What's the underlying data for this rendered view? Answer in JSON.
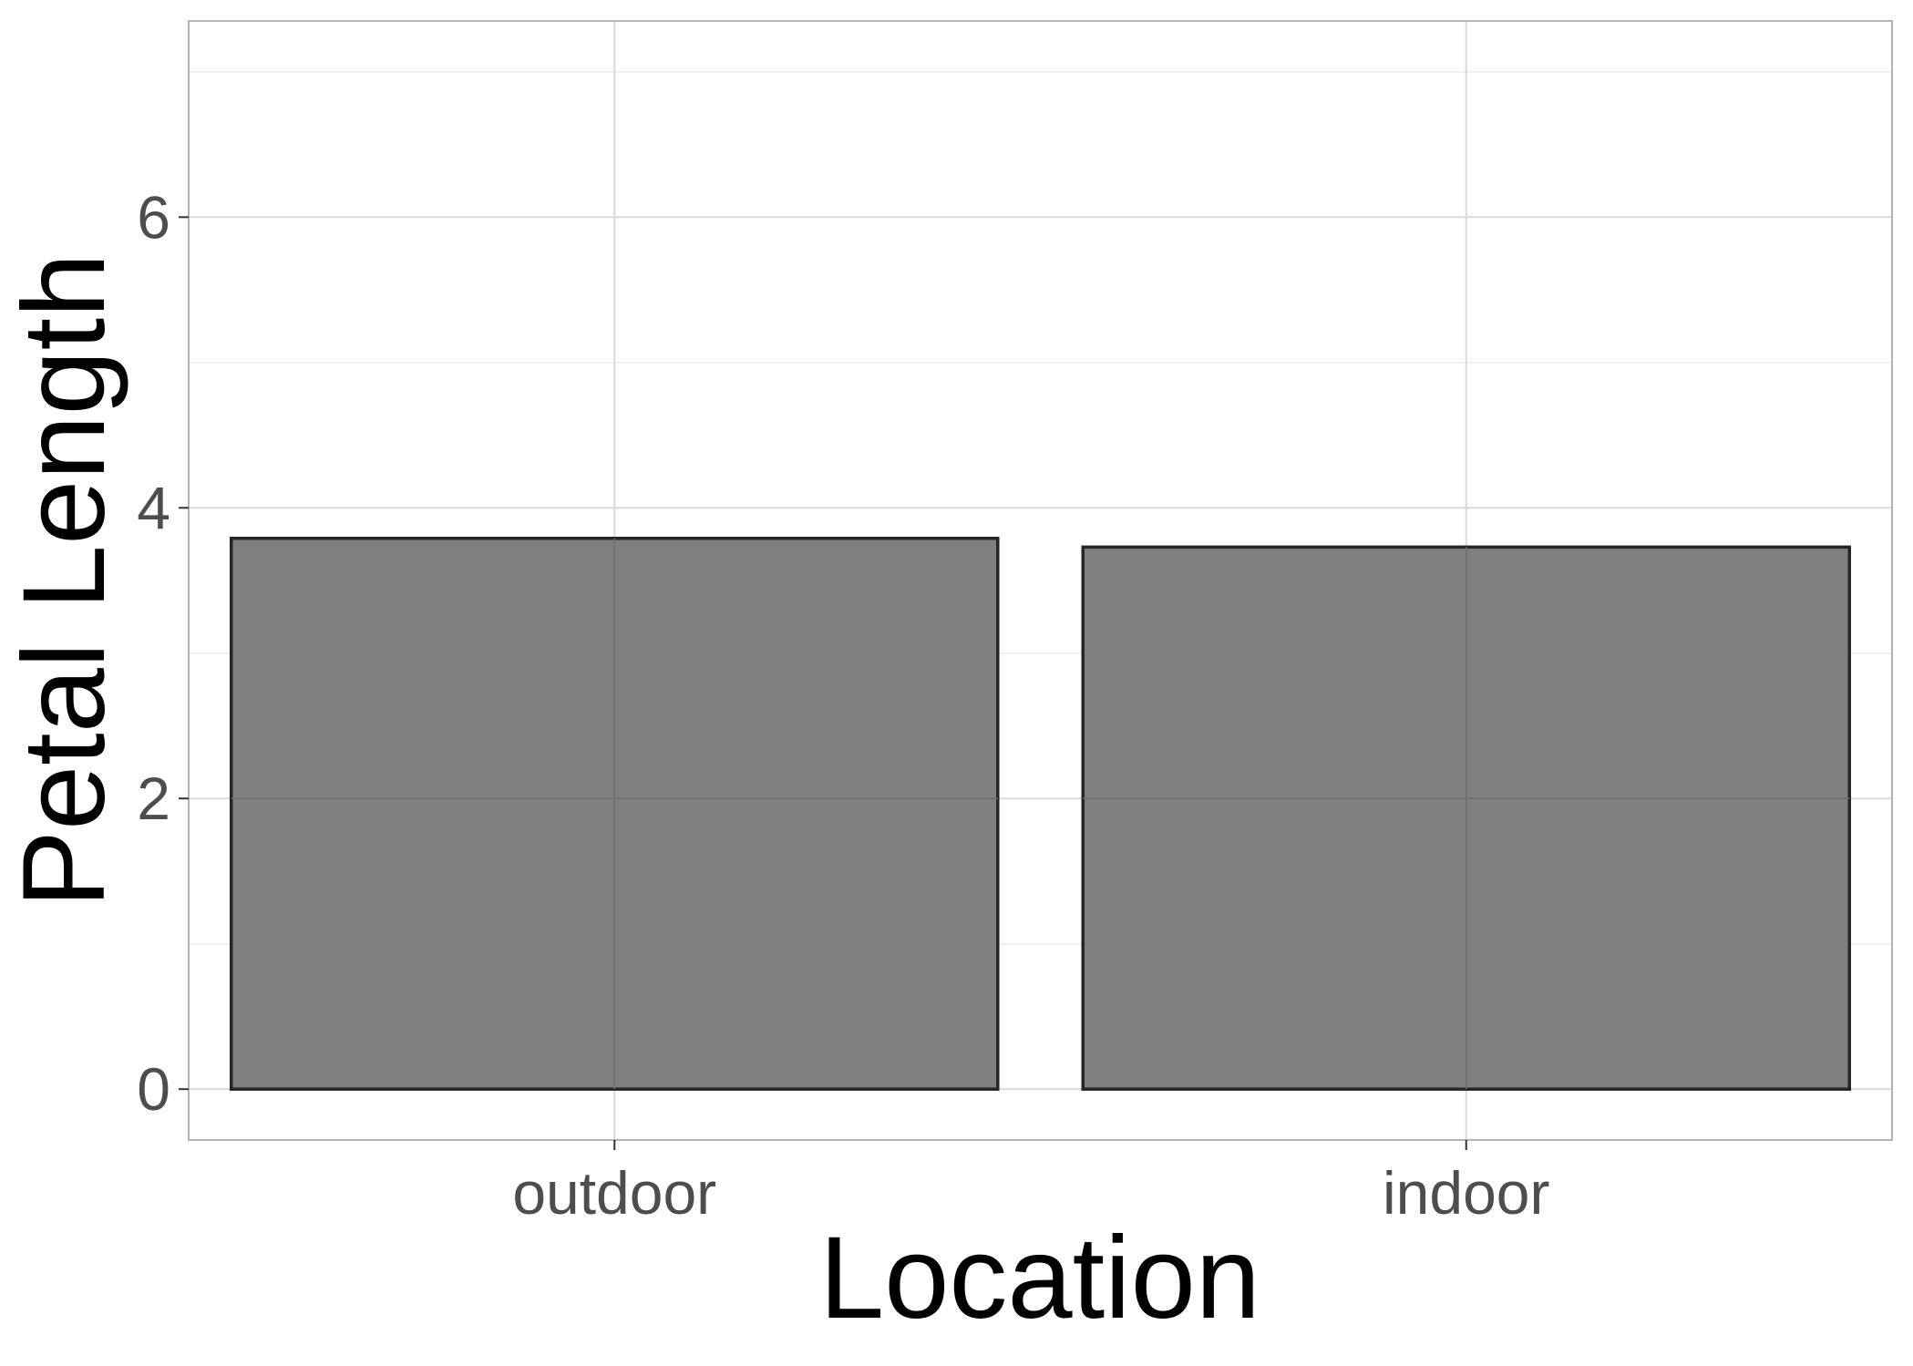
{
  "chart_data": {
    "type": "bar",
    "categories": [
      "outdoor",
      "indoor"
    ],
    "values": [
      3.79,
      3.73
    ],
    "title": "",
    "xlabel": "Location",
    "ylabel": "Petal Length",
    "ylim": [
      -0.35,
      7.35
    ],
    "yticks": [
      0,
      2,
      4,
      6
    ],
    "grid": true,
    "legend": "none",
    "colors": {
      "bar_fill": "#7f7f7f",
      "bar_stroke": "#262626",
      "grid_major": "#d9d9d9",
      "grid_minor": "#ebebeb",
      "panel_border": "#b3b3b3"
    }
  }
}
